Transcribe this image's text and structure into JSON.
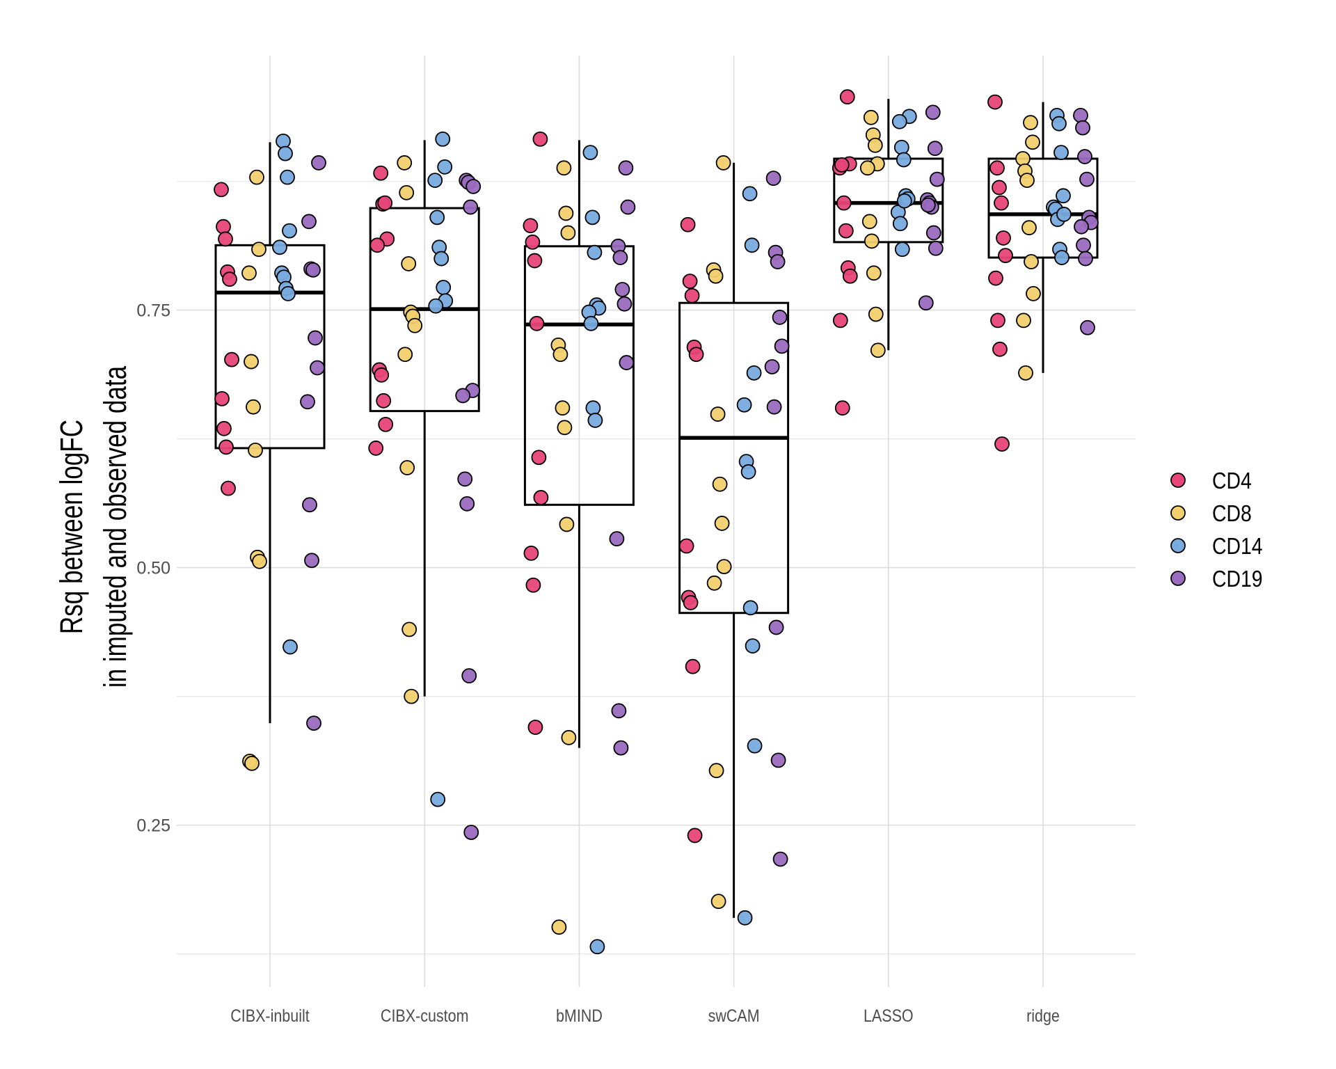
{
  "chart_data": {
    "type": "box",
    "title": "",
    "xlabel": "",
    "ylabel_lines": [
      "Rsq between logFC",
      "in imputed and observed data"
    ],
    "ylim": [
      0.093,
      0.997
    ],
    "yticks": [
      {
        "value": 0.25,
        "label": "0.25"
      },
      {
        "value": 0.5,
        "label": "0.50"
      },
      {
        "value": 0.75,
        "label": "0.75"
      }
    ],
    "minor_gridlines": [
      0.125,
      0.375,
      0.625,
      0.875
    ],
    "grid": true,
    "legend": {
      "placement": "right",
      "entries": [
        {
          "name": "CD4",
          "color": "#E8457A"
        },
        {
          "name": "CD8",
          "color": "#F2D06E"
        },
        {
          "name": "CD14",
          "color": "#78ABDE"
        },
        {
          "name": "CD19",
          "color": "#9A6CBF"
        }
      ]
    },
    "categories": [
      "CIBX-inbuilt",
      "CIBX-custom",
      "bMIND",
      "swCAM",
      "LASSO",
      "ridge"
    ],
    "boxes": [
      {
        "category": "CIBX-inbuilt",
        "whisker_low": 0.349,
        "q1": 0.616,
        "median": 0.767,
        "q3": 0.813,
        "whisker_high": 0.913
      },
      {
        "category": "CIBX-custom",
        "whisker_low": 0.375,
        "q1": 0.652,
        "median": 0.751,
        "q3": 0.849,
        "whisker_high": 0.915
      },
      {
        "category": "bMIND",
        "whisker_low": 0.325,
        "q1": 0.561,
        "median": 0.736,
        "q3": 0.812,
        "whisker_high": 0.915
      },
      {
        "category": "swCAM",
        "whisker_low": 0.16,
        "q1": 0.456,
        "median": 0.626,
        "q3": 0.757,
        "whisker_high": 0.893
      },
      {
        "category": "LASSO",
        "whisker_low": 0.711,
        "q1": 0.816,
        "median": 0.854,
        "q3": 0.897,
        "whisker_high": 0.955
      },
      {
        "category": "ridge",
        "whisker_low": 0.689,
        "q1": 0.801,
        "median": 0.843,
        "q3": 0.897,
        "whisker_high": 0.952
      }
    ],
    "series": [
      {
        "name": "CD4",
        "points": {
          "CIBX-inbuilt": [
            0.867,
            0.831,
            0.819,
            0.787,
            0.78,
            0.702,
            0.664,
            0.635,
            0.617,
            0.577
          ],
          "CIBX-custom": [
            0.883,
            0.853,
            0.854,
            0.819,
            0.813,
            0.692,
            0.687,
            0.662,
            0.639,
            0.616
          ],
          "bMIND": [
            0.916,
            0.832,
            0.816,
            0.798,
            0.737,
            0.607,
            0.568,
            0.514,
            0.483,
            0.345
          ],
          "swCAM": [
            0.833,
            0.778,
            0.764,
            0.714,
            0.707,
            0.521,
            0.471,
            0.466,
            0.404,
            0.24
          ],
          "LASSO": [
            0.957,
            0.892,
            0.888,
            0.891,
            0.854,
            0.827,
            0.791,
            0.783,
            0.74,
            0.655
          ],
          "ridge": [
            0.952,
            0.888,
            0.869,
            0.854,
            0.82,
            0.803,
            0.781,
            0.74,
            0.712,
            0.62
          ]
        }
      },
      {
        "name": "CD8",
        "points": {
          "CIBX-inbuilt": [
            0.879,
            0.809,
            0.786,
            0.7,
            0.656,
            0.614,
            0.51,
            0.506,
            0.312,
            0.31
          ],
          "CIBX-custom": [
            0.893,
            0.864,
            0.795,
            0.748,
            0.744,
            0.735,
            0.707,
            0.597,
            0.44,
            0.375
          ],
          "bMIND": [
            0.888,
            0.844,
            0.825,
            0.716,
            0.707,
            0.655,
            0.636,
            0.542,
            0.335,
            0.151
          ],
          "swCAM": [
            0.893,
            0.789,
            0.783,
            0.649,
            0.581,
            0.543,
            0.501,
            0.485,
            0.303,
            0.176
          ],
          "LASSO": [
            0.937,
            0.92,
            0.91,
            0.892,
            0.888,
            0.836,
            0.817,
            0.786,
            0.746,
            0.711
          ],
          "ridge": [
            0.932,
            0.913,
            0.897,
            0.885,
            0.876,
            0.83,
            0.797,
            0.766,
            0.74,
            0.689
          ]
        }
      },
      {
        "name": "CD14",
        "points": {
          "CIBX-inbuilt": [
            0.914,
            0.902,
            0.879,
            0.827,
            0.811,
            0.786,
            0.782,
            0.771,
            0.766,
            0.423
          ],
          "CIBX-custom": [
            0.916,
            0.889,
            0.876,
            0.84,
            0.811,
            0.8,
            0.772,
            0.759,
            0.754,
            0.275
          ],
          "bMIND": [
            0.903,
            0.84,
            0.806,
            0.755,
            0.752,
            0.748,
            0.737,
            0.655,
            0.643,
            0.132
          ],
          "swCAM": [
            0.863,
            0.813,
            0.689,
            0.658,
            0.603,
            0.593,
            0.461,
            0.424,
            0.327,
            0.16
          ],
          "LASSO": [
            0.938,
            0.933,
            0.908,
            0.896,
            0.861,
            0.858,
            0.845,
            0.834,
            0.809,
            0.856
          ],
          "ridge": [
            0.939,
            0.931,
            0.903,
            0.861,
            0.85,
            0.848,
            0.838,
            0.809,
            0.801,
            0.843
          ]
        }
      },
      {
        "name": "CD19",
        "points": {
          "CIBX-inbuilt": [
            0.893,
            0.836,
            0.79,
            0.789,
            0.723,
            0.694,
            0.661,
            0.561,
            0.507,
            0.349
          ],
          "CIBX-custom": [
            0.876,
            0.874,
            0.85,
            0.672,
            0.667,
            0.586,
            0.562,
            0.395,
            0.243,
            0.87
          ],
          "bMIND": [
            0.888,
            0.85,
            0.812,
            0.801,
            0.77,
            0.756,
            0.699,
            0.528,
            0.361,
            0.325
          ],
          "swCAM": [
            0.878,
            0.806,
            0.797,
            0.743,
            0.715,
            0.695,
            0.656,
            0.442,
            0.313,
            0.217
          ],
          "LASSO": [
            0.942,
            0.907,
            0.877,
            0.857,
            0.854,
            0.85,
            0.825,
            0.81,
            0.757,
            0.852
          ],
          "ridge": [
            0.939,
            0.927,
            0.899,
            0.877,
            0.84,
            0.835,
            0.831,
            0.813,
            0.8,
            0.733
          ]
        }
      }
    ]
  }
}
